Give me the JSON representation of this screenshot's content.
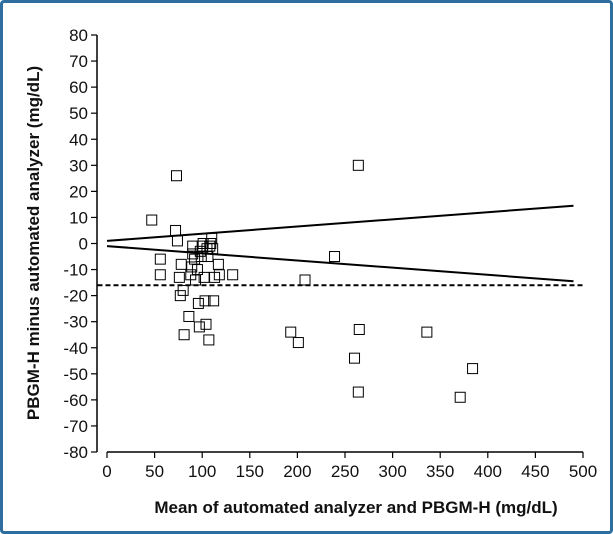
{
  "chart_data": {
    "type": "scatter",
    "title": "",
    "xlabel": "Mean of automated analyzer and PBGM-H (mg/dL)",
    "ylabel": "PBGM-H minus automated analyzer (mg/dL)",
    "xlim": [
      0,
      500
    ],
    "ylim": [
      -80,
      80
    ],
    "xticks": [
      0,
      50,
      100,
      150,
      200,
      250,
      300,
      350,
      400,
      450,
      500
    ],
    "yticks": [
      80,
      70,
      60,
      50,
      40,
      30,
      20,
      10,
      0,
      -10,
      -20,
      -30,
      -40,
      -50,
      -60,
      -70,
      -80
    ],
    "grid": false,
    "legend": "none",
    "marker": "open-square",
    "points": [
      {
        "x": 47,
        "y": 9
      },
      {
        "x": 73,
        "y": 26
      },
      {
        "x": 72,
        "y": 5
      },
      {
        "x": 74,
        "y": 1
      },
      {
        "x": 56,
        "y": -6
      },
      {
        "x": 56,
        "y": -12
      },
      {
        "x": 76,
        "y": -13
      },
      {
        "x": 78,
        "y": -8
      },
      {
        "x": 77,
        "y": -20
      },
      {
        "x": 80,
        "y": -18
      },
      {
        "x": 81,
        "y": -35
      },
      {
        "x": 86,
        "y": -28
      },
      {
        "x": 88,
        "y": -12
      },
      {
        "x": 89,
        "y": -9
      },
      {
        "x": 90,
        "y": -1
      },
      {
        "x": 90,
        "y": -4
      },
      {
        "x": 92,
        "y": -6
      },
      {
        "x": 93,
        "y": -14
      },
      {
        "x": 95,
        "y": -10
      },
      {
        "x": 96,
        "y": -23
      },
      {
        "x": 97,
        "y": -32
      },
      {
        "x": 98,
        "y": -3
      },
      {
        "x": 99,
        "y": -5
      },
      {
        "x": 100,
        "y": -1
      },
      {
        "x": 101,
        "y": 0
      },
      {
        "x": 102,
        "y": -13
      },
      {
        "x": 103,
        "y": -22
      },
      {
        "x": 104,
        "y": -31
      },
      {
        "x": 105,
        "y": -2
      },
      {
        "x": 106,
        "y": -5
      },
      {
        "x": 107,
        "y": -37
      },
      {
        "x": 108,
        "y": -1
      },
      {
        "x": 109,
        "y": 0
      },
      {
        "x": 110,
        "y": 2
      },
      {
        "x": 111,
        "y": -2
      },
      {
        "x": 112,
        "y": -22
      },
      {
        "x": 113,
        "y": -13
      },
      {
        "x": 117,
        "y": -8
      },
      {
        "x": 118,
        "y": -12
      },
      {
        "x": 132,
        "y": -12
      },
      {
        "x": 193,
        "y": -34
      },
      {
        "x": 201,
        "y": -38
      },
      {
        "x": 208,
        "y": -14
      },
      {
        "x": 239,
        "y": -5
      },
      {
        "x": 260,
        "y": -44
      },
      {
        "x": 264,
        "y": 30
      },
      {
        "x": 264,
        "y": -57
      },
      {
        "x": 265,
        "y": -33
      },
      {
        "x": 336,
        "y": -34
      },
      {
        "x": 371,
        "y": -59
      },
      {
        "x": 384,
        "y": -48
      }
    ],
    "reference_lines": [
      {
        "kind": "solid",
        "x": [
          0,
          490
        ],
        "y": [
          1,
          14.5
        ]
      },
      {
        "kind": "solid",
        "x": [
          0,
          490
        ],
        "y": [
          -1,
          -14.5
        ]
      },
      {
        "kind": "dashed",
        "x": [
          -10,
          500
        ],
        "y": [
          -16,
          -16
        ]
      }
    ]
  }
}
